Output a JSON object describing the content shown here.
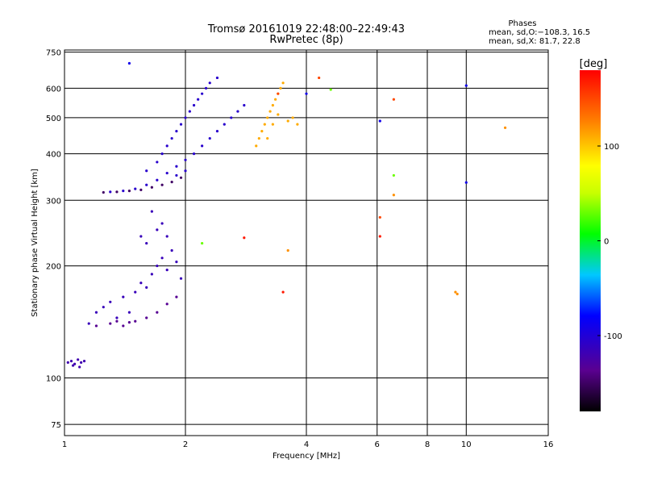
{
  "title_line1": "Tromsø 20161019 22:48:00–22:49:43",
  "title_line2": "RwPretec (8p)",
  "stats": {
    "heading": "Phases",
    "line1": "mean, sd,O:−108.3, 16.5",
    "line2": "mean, sd,X:  81.7, 22.8"
  },
  "chart_data": {
    "type": "scatter",
    "xlabel": "Frequency [MHz]",
    "ylabel": "Stationary phase Virtual Height [km]",
    "xscale": "log",
    "yscale": "log",
    "xlim": [
      1,
      16
    ],
    "ylim": [
      70,
      760
    ],
    "x_ticks": [
      1,
      2,
      4,
      6,
      8,
      10,
      16
    ],
    "x_tick_labels": [
      "1",
      "2",
      "4",
      "6",
      "8",
      "10",
      "16"
    ],
    "y_ticks": [
      75,
      100,
      200,
      300,
      400,
      500,
      600,
      750
    ],
    "y_tick_labels": [
      "75",
      "100",
      "200",
      "300",
      "400",
      "500",
      "600",
      "750"
    ],
    "colorbar": {
      "label": "[deg]",
      "range": [
        -180,
        180
      ],
      "ticks": [
        100,
        0,
        -100
      ],
      "tick_labels": [
        "100",
        "0",
        "-100"
      ]
    },
    "series": [
      {
        "color_value": -120,
        "points": [
          [
            1.02,
            110
          ],
          [
            1.04,
            111
          ],
          [
            1.06,
            109
          ],
          [
            1.08,
            112
          ],
          [
            1.1,
            110
          ],
          [
            1.12,
            111
          ],
          [
            1.05,
            108
          ],
          [
            1.09,
            107
          ]
        ]
      },
      {
        "color_value": -115,
        "points": [
          [
            1.15,
            140
          ],
          [
            1.2,
            150
          ],
          [
            1.25,
            155
          ],
          [
            1.3,
            160
          ],
          [
            1.35,
            145
          ],
          [
            1.4,
            165
          ],
          [
            1.45,
            150
          ],
          [
            1.5,
            170
          ],
          [
            1.55,
            180
          ],
          [
            1.6,
            175
          ],
          [
            1.65,
            190
          ],
          [
            1.7,
            200
          ],
          [
            1.75,
            210
          ],
          [
            1.8,
            195
          ],
          [
            1.85,
            220
          ],
          [
            1.9,
            205
          ],
          [
            1.95,
            185
          ],
          [
            1.6,
            230
          ],
          [
            1.7,
            250
          ],
          [
            1.55,
            240
          ],
          [
            1.65,
            280
          ],
          [
            1.75,
            260
          ],
          [
            1.8,
            240
          ]
        ]
      },
      {
        "color_value": -135,
        "points": [
          [
            1.2,
            138
          ],
          [
            1.3,
            140
          ],
          [
            1.4,
            138
          ],
          [
            1.5,
            142
          ],
          [
            1.6,
            145
          ],
          [
            1.7,
            150
          ],
          [
            1.8,
            158
          ],
          [
            1.9,
            165
          ],
          [
            1.35,
            142
          ],
          [
            1.45,
            141
          ]
        ]
      },
      {
        "color_value": -105,
        "points": [
          [
            1.3,
            316
          ],
          [
            1.4,
            318
          ],
          [
            1.5,
            322
          ],
          [
            1.6,
            330
          ],
          [
            1.7,
            340
          ],
          [
            1.8,
            355
          ],
          [
            1.9,
            370
          ],
          [
            2.0,
            385
          ],
          [
            2.1,
            400
          ],
          [
            2.2,
            420
          ],
          [
            2.3,
            440
          ],
          [
            2.4,
            460
          ],
          [
            2.5,
            480
          ],
          [
            2.6,
            500
          ],
          [
            2.7,
            520
          ],
          [
            2.8,
            540
          ],
          [
            1.7,
            380
          ],
          [
            1.8,
            420
          ],
          [
            1.9,
            460
          ],
          [
            2.0,
            500
          ],
          [
            2.1,
            540
          ],
          [
            2.2,
            580
          ],
          [
            2.3,
            620
          ],
          [
            2.4,
            640
          ],
          [
            1.6,
            360
          ],
          [
            1.75,
            400
          ],
          [
            1.85,
            440
          ],
          [
            1.95,
            480
          ],
          [
            2.05,
            520
          ],
          [
            2.15,
            560
          ],
          [
            2.25,
            600
          ],
          [
            1.9,
            350
          ],
          [
            2.0,
            360
          ]
        ]
      },
      {
        "color_value": -150,
        "points": [
          [
            1.25,
            315
          ],
          [
            1.35,
            316
          ],
          [
            1.45,
            318
          ],
          [
            1.55,
            320
          ],
          [
            1.65,
            325
          ],
          [
            1.75,
            330
          ],
          [
            1.85,
            336
          ],
          [
            1.95,
            345
          ]
        ]
      },
      {
        "color_value": 110,
        "points": [
          [
            3.0,
            420
          ],
          [
            3.05,
            440
          ],
          [
            3.1,
            460
          ],
          [
            3.15,
            480
          ],
          [
            3.2,
            500
          ],
          [
            3.25,
            520
          ],
          [
            3.3,
            540
          ],
          [
            3.35,
            560
          ],
          [
            3.4,
            580
          ],
          [
            3.45,
            600
          ],
          [
            3.5,
            620
          ],
          [
            3.2,
            440
          ],
          [
            3.3,
            480
          ],
          [
            3.4,
            510
          ],
          [
            3.6,
            490
          ],
          [
            3.7,
            500
          ],
          [
            3.8,
            480
          ]
        ]
      },
      {
        "color_value": 150,
        "points": [
          [
            3.4,
            580
          ],
          [
            4.3,
            640
          ],
          [
            6.6,
            560
          ],
          [
            6.1,
            270
          ]
        ]
      },
      {
        "color_value": 30,
        "points": [
          [
            2.2,
            230
          ],
          [
            6.6,
            350
          ],
          [
            4.6,
            595
          ]
        ]
      },
      {
        "color_value": 120,
        "points": [
          [
            9.4,
            170
          ],
          [
            9.5,
            168
          ],
          [
            12.5,
            470
          ],
          [
            6.6,
            310
          ],
          [
            3.6,
            220
          ]
        ]
      },
      {
        "color_value": 170,
        "points": [
          [
            2.8,
            238
          ],
          [
            3.5,
            170
          ],
          [
            6.1,
            240
          ]
        ]
      },
      {
        "color_value": -90,
        "points": [
          [
            6.1,
            490
          ],
          [
            10.0,
            335
          ],
          [
            10.0,
            610
          ],
          [
            4.0,
            580
          ],
          [
            1.45,
            700
          ]
        ]
      }
    ]
  }
}
